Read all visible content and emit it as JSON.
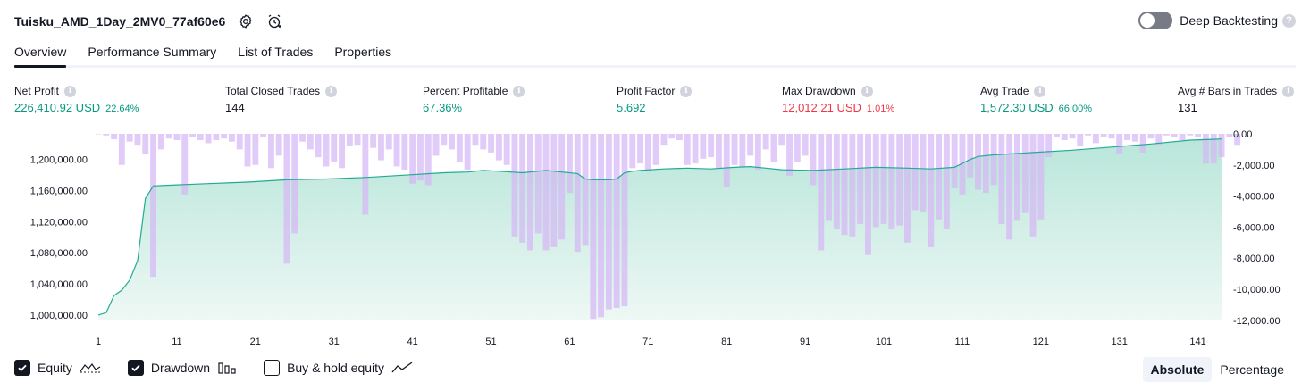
{
  "header": {
    "title": "Tuisku_AMD_1Day_2MV0_77af60e6",
    "settings_icon": "gear-icon",
    "alert_icon": "alarm-clock-add-icon"
  },
  "deep_backtesting": {
    "label": "Deep Backtesting",
    "enabled": false,
    "help": "?"
  },
  "tabs": [
    {
      "label": "Overview",
      "active": true
    },
    {
      "label": "Performance Summary",
      "active": false
    },
    {
      "label": "List of Trades",
      "active": false
    },
    {
      "label": "Properties",
      "active": false
    }
  ],
  "metrics": {
    "info_glyph": "i",
    "net_profit": {
      "label": "Net Profit",
      "value": "226,410.92 USD",
      "pct": "22.64%"
    },
    "total_closed_trades": {
      "label": "Total Closed Trades",
      "value": "144"
    },
    "percent_profitable": {
      "label": "Percent Profitable",
      "value": "67.36%"
    },
    "profit_factor": {
      "label": "Profit Factor",
      "value": "5.692"
    },
    "max_drawdown": {
      "label": "Max Drawdown",
      "value": "12,012.21 USD",
      "pct": "1.01%"
    },
    "avg_trade": {
      "label": "Avg Trade",
      "value": "1,572.30 USD",
      "pct": "66.00%"
    },
    "avg_bars": {
      "label": "Avg # Bars in Trades",
      "value": "131"
    }
  },
  "colors": {
    "profit": "#089981",
    "loss": "#f23645",
    "equity_line": "#22ab94",
    "equity_fill_top": "#b9e6da",
    "equity_fill_bottom": "#eef8f5",
    "drawdown_bar": "#d6b7f5"
  },
  "chart_data": {
    "type": "area",
    "x_ticks": [
      "1",
      "11",
      "21",
      "31",
      "41",
      "51",
      "61",
      "71",
      "81",
      "91",
      "101",
      "111",
      "121",
      "131",
      "141"
    ],
    "left_axis": {
      "ticks": [
        "1,200,000.00",
        "1,160,000.00",
        "1,120,000.00",
        "1,080,000.00",
        "1,040,000.00",
        "1,000,000.00"
      ],
      "range": [
        993000,
        1233000
      ]
    },
    "right_axis": {
      "ticks": [
        "0.00",
        "-2,000.00",
        "-4,000.00",
        "-6,000.00",
        "-8,000.00",
        "-10,000.00",
        "-12,000.00"
      ],
      "range": [
        -12012,
        0
      ]
    },
    "series": [
      {
        "name": "Equity",
        "kind": "line-area",
        "x": [
          1,
          2,
          3,
          4,
          5,
          6,
          7,
          8,
          10,
          15,
          20,
          25,
          30,
          35,
          40,
          45,
          48,
          50,
          52,
          55,
          58,
          60,
          62,
          63,
          64,
          66,
          67,
          68,
          69,
          70,
          73,
          76,
          79,
          82,
          84,
          86,
          88,
          92,
          96,
          100,
          104,
          107,
          110,
          111,
          112,
          113,
          115,
          120,
          125,
          130,
          135,
          140,
          143,
          144
        ],
        "values": [
          1000000,
          1003000,
          1025000,
          1032000,
          1045000,
          1070000,
          1150000,
          1166000,
          1167000,
          1169000,
          1171000,
          1174000,
          1175000,
          1177000,
          1180000,
          1183000,
          1184000,
          1186000,
          1185000,
          1183000,
          1186000,
          1184000,
          1182000,
          1175000,
          1174000,
          1174000,
          1175000,
          1183000,
          1185000,
          1186000,
          1188000,
          1189000,
          1188000,
          1190000,
          1191000,
          1189000,
          1187000,
          1186000,
          1188000,
          1190000,
          1189000,
          1188000,
          1190000,
          1195000,
          1200000,
          1204000,
          1206000,
          1209000,
          1212000,
          1216000,
          1220000,
          1225000,
          1226000,
          1226411
        ]
      },
      {
        "name": "Drawdown",
        "kind": "bar",
        "x_start": 1,
        "values": [
          0,
          -100,
          -350,
          -2000,
          -500,
          -700,
          -1300,
          -9200,
          -1000,
          -300,
          -400,
          -3900,
          -200,
          -400,
          -600,
          -400,
          -300,
          -500,
          -1000,
          -2100,
          -2000,
          -200,
          -2200,
          -1400,
          -8350,
          -6400,
          -500,
          -1000,
          -1500,
          -2100,
          -1800,
          -2200,
          -800,
          -700,
          -5200,
          -900,
          -1700,
          -1000,
          -2100,
          -2300,
          -3200,
          -3000,
          -3300,
          -1400,
          -700,
          -1000,
          -1800,
          -2300,
          -700,
          -1000,
          -1200,
          -1700,
          -2000,
          -6600,
          -7000,
          -7500,
          -6400,
          -7500,
          -7300,
          -6800,
          -3800,
          -7600,
          -7200,
          -11900,
          -11800,
          -11300,
          -11200,
          -11100,
          -2200,
          -1900,
          -2300,
          -2000,
          -700,
          -300,
          -400,
          -2000,
          -1900,
          -1600,
          -1500,
          -2200,
          -3400,
          -2000,
          -2100,
          -1400,
          -2300,
          -1000,
          -1800,
          -700,
          -2700,
          -1800,
          -1400,
          -3300,
          -7500,
          -5600,
          -6100,
          -6500,
          -6600,
          -5800,
          -7800,
          -6000,
          -5800,
          -6100,
          -5900,
          -7000,
          -4900,
          -5000,
          -7300,
          -5500,
          -6100,
          -3500,
          -3900,
          -2800,
          -3600,
          -3800,
          -3300,
          -5800,
          -6800,
          -5600,
          -5100,
          -6600,
          -5500,
          -1500,
          -200,
          -400,
          -300,
          -800,
          -100,
          -600,
          -200,
          -300,
          -1300,
          -400,
          -500,
          -1200,
          -300,
          -700,
          -100,
          -200,
          -400,
          -100,
          -200,
          -1900,
          -1900,
          -1500,
          -200,
          -700
        ]
      }
    ],
    "legend": [
      {
        "name": "Equity",
        "checked": true,
        "icon": "equity-line-icon"
      },
      {
        "name": "Drawdown",
        "checked": true,
        "icon": "drawdown-bars-icon"
      },
      {
        "name": "Buy & hold equity",
        "checked": false,
        "icon": "buy-hold-line-icon"
      }
    ],
    "grid": false
  },
  "view_modes": [
    {
      "label": "Absolute",
      "active": true
    },
    {
      "label": "Percentage",
      "active": false
    }
  ]
}
